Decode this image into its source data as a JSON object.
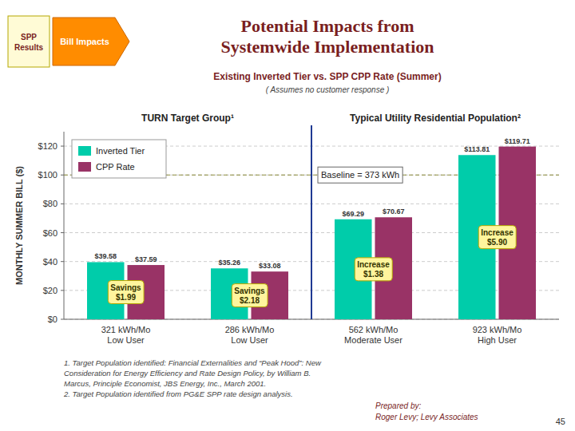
{
  "chart_data": {
    "type": "bar",
    "title": "Potential Impacts from\nSystemwide Implementation",
    "subtitle": [
      "Existing Inverted Tier vs. SPP CPP Rate (Summer)",
      "( Assumes no customer response )"
    ],
    "y_label": "MONTHLY SUMMER BILL ($)",
    "categories": [
      "321 kWh/Mo\nLow User",
      "286 kWh/Mo\nLow User",
      "562 kWh/Mo\nModerate User",
      "923 kWh/Mo\nHigh User"
    ],
    "series": [
      {
        "name": "Inverted Tier",
        "color": "#00CCAA",
        "values": [
          39.58,
          35.26,
          69.29,
          113.81
        ],
        "value_labels": [
          "$39.58",
          "$35.26",
          "$69.29",
          "$113.81"
        ]
      },
      {
        "name": "CPP Rate",
        "color": "#993366",
        "values": [
          37.59,
          33.08,
          70.67,
          119.71
        ],
        "value_labels": [
          "$37.59",
          "$33.08",
          "$70.67",
          "$119.71"
        ]
      }
    ],
    "annotations": [
      "Savings\n$1.99",
      "Savings\n$2.18",
      "Increase\n$1.38",
      "Increase\n$5.90"
    ],
    "section_labels": [
      "TURN Target Group¹",
      "Typical Utility Residential Population²"
    ],
    "reference_line": {
      "value": 100,
      "label": "Baseline = 373 kWh"
    },
    "badges": [
      "SPP\nResults",
      "Bill Impacts"
    ],
    "footnotes": [
      "1. Target Population identified: Financial Externalities and “Peak Hood”: New",
      "Consideration for Energy Efficiency and Rate Design Policy, by William B.",
      "Marcus, Principle Economist, JBS Energy, Inc., March 2001.",
      "2. Target Population identified from PG&E SPP rate design analysis."
    ],
    "credits": [
      "Prepared by:",
      "Roger Levy; Levy Associates"
    ],
    "page_number": "45",
    "ylim": [
      0,
      130
    ],
    "yticks": [
      {
        "value": 0,
        "label": "$0"
      },
      {
        "value": 20,
        "label": "$20"
      },
      {
        "value": 40,
        "label": "$40"
      },
      {
        "value": 60,
        "label": "$60"
      },
      {
        "value": 80,
        "label": "$80"
      },
      {
        "value": 100,
        "label": "$100"
      },
      {
        "value": 120,
        "label": "$120"
      }
    ],
    "grid": true,
    "legend": "upper left",
    "data_labels": true
  }
}
